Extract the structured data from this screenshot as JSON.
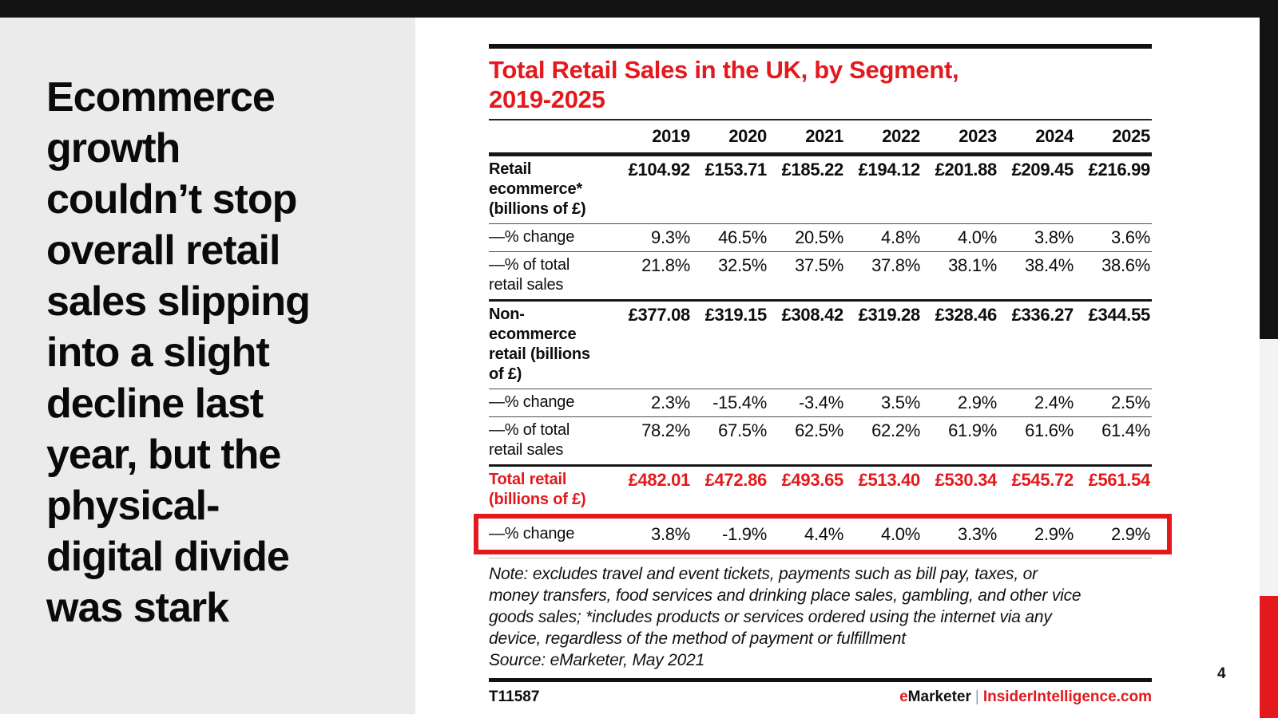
{
  "page": {
    "page_number": "4"
  },
  "sidebar": {
    "headline": "Ecommerce\ngrowth\ncouldn’t stop\noverall retail\nsales slipping\ninto a slight\ndecline last\nyear, but the\nphysical-\ndigital divide\nwas stark"
  },
  "figure": {
    "title": "Total Retail Sales in the UK, by Segment,\n2019-2025",
    "years": [
      "2019",
      "2020",
      "2021",
      "2022",
      "2023",
      "2024",
      "2025"
    ],
    "rows": [
      {
        "label": "Retail\necommerce*\n(billions of £)",
        "style": "money",
        "group_start": true,
        "values": [
          "£104.92",
          "£153.71",
          "£185.22",
          "£194.12",
          "£201.88",
          "£209.45",
          "£216.99"
        ]
      },
      {
        "label": "—% change",
        "style": "pct",
        "values": [
          "9.3%",
          "46.5%",
          "20.5%",
          "4.8%",
          "4.0%",
          "3.8%",
          "3.6%"
        ]
      },
      {
        "label": "—% of total\nretail sales",
        "style": "pct",
        "values": [
          "21.8%",
          "32.5%",
          "37.5%",
          "37.8%",
          "38.1%",
          "38.4%",
          "38.6%"
        ]
      },
      {
        "label": "Non-\necommerce\nretail (billions\nof £)",
        "style": "money",
        "group_start": true,
        "values": [
          "£377.08",
          "£319.15",
          "£308.42",
          "£319.28",
          "£328.46",
          "£336.27",
          "£344.55"
        ]
      },
      {
        "label": "—% change",
        "style": "pct",
        "values": [
          "2.3%",
          "-15.4%",
          "-3.4%",
          "3.5%",
          "2.9%",
          "2.4%",
          "2.5%"
        ]
      },
      {
        "label": "—% of total\nretail sales",
        "style": "pct",
        "values": [
          "78.2%",
          "67.5%",
          "62.5%",
          "62.2%",
          "61.9%",
          "61.6%",
          "61.4%"
        ]
      },
      {
        "label": "Total retail\n(billions of £)",
        "style": "money",
        "group_start": true,
        "red": true,
        "values": [
          "£482.01",
          "£472.86",
          "£493.65",
          "£513.40",
          "£530.34",
          "£545.72",
          "£561.54"
        ]
      },
      {
        "label": "—% change",
        "style": "pct",
        "highlighted": true,
        "values": [
          "3.8%",
          "-1.9%",
          "4.4%",
          "4.0%",
          "3.3%",
          "2.9%",
          "2.9%"
        ]
      }
    ],
    "note": "Note: excludes travel and event tickets, payments such as bill pay, taxes, or\nmoney transfers, food services and drinking place sales, gambling, and other vice\ngoods sales; *includes products or services ordered using the internet via any\ndevice, regardless of the method of payment or fulfillment",
    "source": "Source: eMarketer, May 2021",
    "chart_id": "T11587",
    "brand": {
      "e": "e",
      "marketer": "Marketer",
      "separator": "|",
      "site": "InsiderIntelligence.com"
    }
  },
  "colors": {
    "accent_red": "#e3191d",
    "top_bar_black": "#131313",
    "left_panel_gray": "#ebebeb",
    "right_edge_gray": "#f3f3f3"
  },
  "chart_data": {
    "type": "table",
    "title": "Total Retail Sales in the UK, by Segment, 2019-2025",
    "categories": [
      "2019",
      "2020",
      "2021",
      "2022",
      "2023",
      "2024",
      "2025"
    ],
    "series": [
      {
        "name": "Retail ecommerce (billions of £)",
        "values": [
          104.92,
          153.71,
          185.22,
          194.12,
          201.88,
          209.45,
          216.99
        ]
      },
      {
        "name": "Retail ecommerce % change",
        "values": [
          9.3,
          46.5,
          20.5,
          4.8,
          4.0,
          3.8,
          3.6
        ]
      },
      {
        "name": "Retail ecommerce % of total retail sales",
        "values": [
          21.8,
          32.5,
          37.5,
          37.8,
          38.1,
          38.4,
          38.6
        ]
      },
      {
        "name": "Non-ecommerce retail (billions of £)",
        "values": [
          377.08,
          319.15,
          308.42,
          319.28,
          328.46,
          336.27,
          344.55
        ]
      },
      {
        "name": "Non-ecommerce retail % change",
        "values": [
          2.3,
          -15.4,
          -3.4,
          3.5,
          2.9,
          2.4,
          2.5
        ]
      },
      {
        "name": "Non-ecommerce retail % of total retail sales",
        "values": [
          78.2,
          67.5,
          62.5,
          62.2,
          61.9,
          61.6,
          61.4
        ]
      },
      {
        "name": "Total retail (billions of £)",
        "values": [
          482.01,
          472.86,
          493.65,
          513.4,
          530.34,
          545.72,
          561.54
        ]
      },
      {
        "name": "Total retail % change",
        "values": [
          3.8,
          -1.9,
          4.4,
          4.0,
          3.3,
          2.9,
          2.9
        ]
      }
    ],
    "highlighted_series": "Total retail % change",
    "source": "eMarketer, May 2021"
  }
}
